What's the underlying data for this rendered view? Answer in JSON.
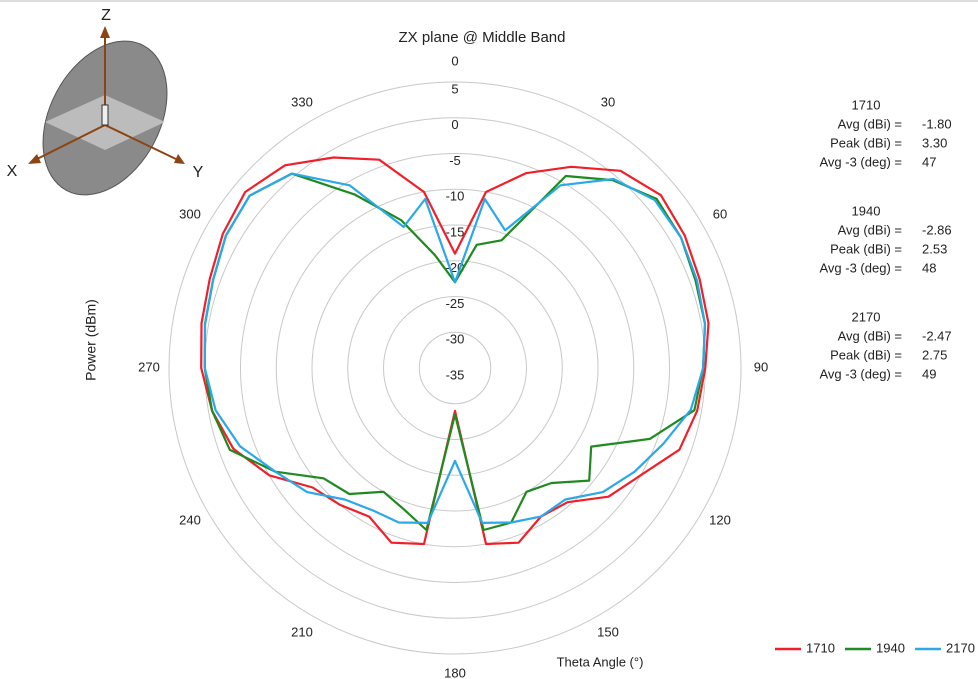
{
  "chart_data": {
    "type": "polar",
    "title": "ZX plane @ Middle Band",
    "ylabel": "Power (dBm)",
    "xlabel": "Theta Angle (°)",
    "theta": [
      0,
      10,
      20,
      30,
      40,
      50,
      60,
      70,
      80,
      90,
      100,
      110,
      120,
      130,
      140,
      150,
      160,
      170,
      180,
      190,
      200,
      210,
      220,
      230,
      240,
      250,
      260,
      270,
      280,
      290,
      300,
      310,
      320,
      330,
      340,
      350
    ],
    "thetaticks": [
      0,
      30,
      60,
      90,
      120,
      150,
      180,
      210,
      240,
      270,
      300,
      330
    ],
    "rlim": [
      -35,
      5
    ],
    "rticks": [
      -35,
      -30,
      -25,
      -20,
      -15,
      -10,
      -5,
      0,
      5
    ],
    "grid": true,
    "legend": "lower right",
    "series": [
      {
        "name": "1710",
        "color": "#f0202a",
        "values": [
          -19,
          -10,
          -6,
          -2.5,
          1,
          2.6,
          2.1,
          1.4,
          1,
          0,
          -0.6,
          -1.6,
          -5,
          -7,
          -10.5,
          -11,
          -9,
          -10,
          -29,
          -10,
          -9,
          -11,
          -10,
          -9,
          -5,
          -2,
          -0.5,
          0.5,
          1,
          1.5,
          2.5,
          3.3,
          2,
          -1,
          -4,
          -10
        ]
      },
      {
        "name": "1940",
        "color": "#1f8a1f",
        "values": [
          -23,
          -17.5,
          -16,
          -4,
          -0.7,
          1.8,
          1.5,
          0.8,
          0.5,
          -0.3,
          -1,
          -6,
          -13,
          -10.5,
          -14,
          -15,
          -12,
          -12,
          -28.5,
          -12,
          -14,
          -15,
          -12,
          -11,
          -6,
          -1.5,
          -0.5,
          0,
          0.5,
          1,
          2,
          2.5,
          0.5,
          -7,
          -13,
          -19
        ]
      },
      {
        "name": "2170",
        "color": "#2aa8e8",
        "values": [
          -23,
          -11,
          -14.5,
          -5.5,
          -0.5,
          1.5,
          1.5,
          1,
          0.5,
          -0.3,
          -1.5,
          -4,
          -6,
          -8,
          -11,
          -11,
          -12,
          -13,
          -22,
          -13,
          -12,
          -12,
          -11,
          -8,
          -6,
          -3,
          -1,
          0,
          0.5,
          1,
          2,
          2.5,
          0.5,
          -5.5,
          -14,
          -11
        ]
      }
    ],
    "stats": [
      {
        "name": "1710",
        "rows": [
          {
            "label": "Avg (dBi) =",
            "value": "-1.80"
          },
          {
            "label": "Peak (dBi) =",
            "value": "3.30"
          },
          {
            "label": "Avg -3 (deg) =",
            "value": "47"
          }
        ]
      },
      {
        "name": "1940",
        "rows": [
          {
            "label": "Avg (dBi) =",
            "value": "-2.86"
          },
          {
            "label": "Peak (dBi) =",
            "value": "2.53"
          },
          {
            "label": "Avg -3 (deg) =",
            "value": "48"
          }
        ]
      },
      {
        "name": "2170",
        "rows": [
          {
            "label": "Avg (dBi) =",
            "value": "-2.47"
          },
          {
            "label": "Peak (dBi) =",
            "value": "2.75"
          },
          {
            "label": "Avg -3 (deg) =",
            "value": "49"
          }
        ]
      }
    ]
  },
  "orientation_icon": {
    "z": "Z",
    "x": "X",
    "y": "Y"
  }
}
